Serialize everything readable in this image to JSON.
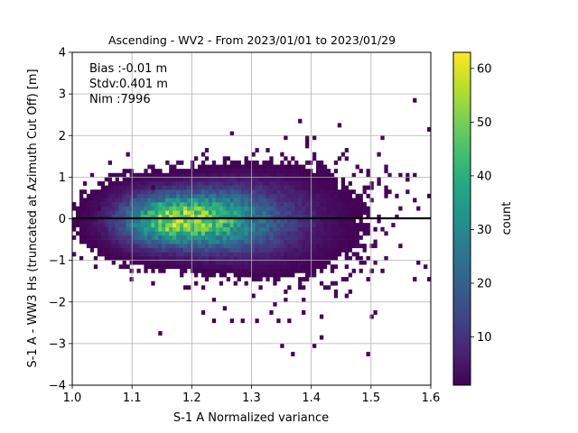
{
  "chart_data": {
    "type": "heatmap",
    "title": "Ascending - WV2 - From 2023/01/01 to 2023/01/29",
    "xlabel": "S-1 A Normalized variance",
    "ylabel": "S-1 A - WW3 Hs (truncated at Azimuth Cut Off) [m]",
    "xlim": [
      1.0,
      1.6
    ],
    "ylim": [
      -4,
      4
    ],
    "x_ticks": [
      "1.0",
      "1.1",
      "1.2",
      "1.3",
      "1.4",
      "1.5",
      "1.6"
    ],
    "y_ticks": [
      "4",
      "3",
      "2",
      "1",
      "0",
      "−1",
      "−2",
      "−3",
      "−4"
    ],
    "grid": true,
    "colormap": "viridis",
    "colorbar": {
      "label": "count",
      "range": [
        1,
        63
      ],
      "ticks": [
        "60",
        "50",
        "40",
        "30",
        "20",
        "10"
      ]
    },
    "reference_line_y": 0,
    "annotation": {
      "bias": "Bias :-0.01 m",
      "stdv": "Stdv:0.401 m",
      "nim": "Nim :7996"
    },
    "density_model": {
      "center_x": 1.175,
      "center_y": -0.02,
      "peak_count": 55,
      "n_samples": 7996
    },
    "outliers": [
      [
        1.57,
        2.83
      ],
      [
        1.598,
        2.15
      ],
      [
        1.38,
        2.33
      ],
      [
        1.355,
        1.95
      ],
      [
        1.393,
        1.82
      ],
      [
        1.135,
        0.7
      ],
      [
        1.49,
        0.72
      ],
      [
        1.545,
        0.55
      ],
      [
        1.575,
        0.47
      ],
      [
        1.597,
        0.5
      ],
      [
        1.045,
        0.27
      ],
      [
        1.56,
        0.95
      ],
      [
        1.575,
        1.05
      ],
      [
        1.47,
        1.05
      ],
      [
        1.55,
        1.05
      ],
      [
        1.015,
        -0.97
      ],
      [
        1.578,
        -1.05
      ],
      [
        1.588,
        -1.18
      ],
      [
        1.598,
        -1.5
      ],
      [
        1.575,
        -1.48
      ],
      [
        1.5,
        -1.3
      ],
      [
        1.52,
        -1.3
      ],
      [
        1.47,
        -1.2
      ],
      [
        1.42,
        -1.18
      ],
      [
        1.39,
        -1.12
      ],
      [
        1.305,
        -1.85
      ],
      [
        1.22,
        -2.25
      ],
      [
        1.235,
        -1.95
      ],
      [
        1.255,
        -2.15
      ],
      [
        1.265,
        -2.5
      ],
      [
        1.285,
        -2.45
      ],
      [
        1.24,
        -2.45
      ],
      [
        1.145,
        -2.73
      ],
      [
        1.36,
        -2.48
      ],
      [
        1.415,
        -2.35
      ],
      [
        1.42,
        -2.9
      ],
      [
        1.405,
        -3.02
      ],
      [
        1.35,
        -3.08
      ],
      [
        1.37,
        -3.3
      ],
      [
        1.495,
        -3.2
      ],
      [
        1.5,
        -2.35
      ],
      [
        1.505,
        -2.2
      ],
      [
        1.39,
        -2.2
      ],
      [
        1.345,
        -2.45
      ],
      [
        1.335,
        -2.3
      ],
      [
        1.365,
        -1.65
      ],
      [
        1.295,
        -1.35
      ],
      [
        1.275,
        -1.55
      ],
      [
        1.31,
        -2.45
      ],
      [
        1.19,
        -1.6
      ]
    ]
  }
}
